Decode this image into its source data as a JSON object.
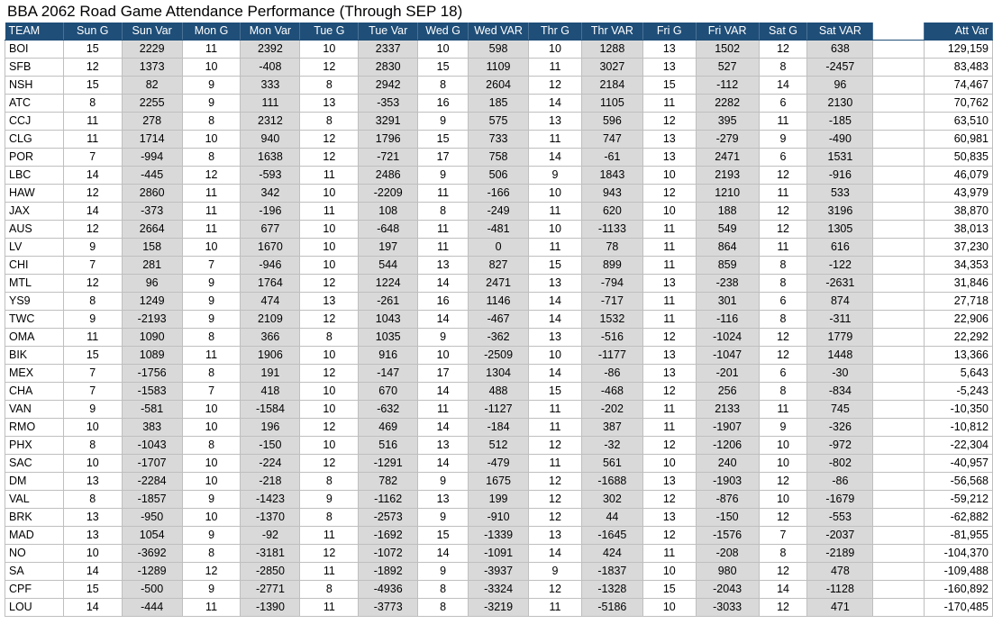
{
  "title": "BBA 2062 Road Game Attendance Performance (Through SEP 18)",
  "columns": [
    "TEAM",
    "Sun G",
    "Sun Var",
    "Mon G",
    "Mon Var",
    "Tue G",
    "Tue Var",
    "Wed G",
    "Wed VAR",
    "Thr G",
    "Thr VAR",
    "Fri G",
    "Fri VAR",
    "Sat G",
    "Sat VAR",
    "",
    "Att Var"
  ],
  "rows": [
    [
      "BOI",
      "15",
      "2229",
      "11",
      "2392",
      "10",
      "2337",
      "10",
      "598",
      "10",
      "1288",
      "13",
      "1502",
      "12",
      "638",
      "129,159"
    ],
    [
      "SFB",
      "12",
      "1373",
      "10",
      "-408",
      "12",
      "2830",
      "15",
      "1109",
      "11",
      "3027",
      "13",
      "527",
      "8",
      "-2457",
      "83,483"
    ],
    [
      "NSH",
      "15",
      "82",
      "9",
      "333",
      "8",
      "2942",
      "8",
      "2604",
      "12",
      "2184",
      "15",
      "-112",
      "14",
      "96",
      "74,467"
    ],
    [
      "ATC",
      "8",
      "2255",
      "9",
      "111",
      "13",
      "-353",
      "16",
      "185",
      "14",
      "1105",
      "11",
      "2282",
      "6",
      "2130",
      "70,762"
    ],
    [
      "CCJ",
      "11",
      "278",
      "8",
      "2312",
      "8",
      "3291",
      "9",
      "575",
      "13",
      "596",
      "12",
      "395",
      "11",
      "-185",
      "63,510"
    ],
    [
      "CLG",
      "11",
      "1714",
      "10",
      "940",
      "12",
      "1796",
      "15",
      "733",
      "11",
      "747",
      "13",
      "-279",
      "9",
      "-490",
      "60,981"
    ],
    [
      "POR",
      "7",
      "-994",
      "8",
      "1638",
      "12",
      "-721",
      "17",
      "758",
      "14",
      "-61",
      "13",
      "2471",
      "6",
      "1531",
      "50,835"
    ],
    [
      "LBC",
      "14",
      "-445",
      "12",
      "-593",
      "11",
      "2486",
      "9",
      "506",
      "9",
      "1843",
      "10",
      "2193",
      "12",
      "-916",
      "46,079"
    ],
    [
      "HAW",
      "12",
      "2860",
      "11",
      "342",
      "10",
      "-2209",
      "11",
      "-166",
      "10",
      "943",
      "12",
      "1210",
      "11",
      "533",
      "43,979"
    ],
    [
      "JAX",
      "14",
      "-373",
      "11",
      "-196",
      "11",
      "108",
      "8",
      "-249",
      "11",
      "620",
      "10",
      "188",
      "12",
      "3196",
      "38,870"
    ],
    [
      "AUS",
      "12",
      "2664",
      "11",
      "677",
      "10",
      "-648",
      "11",
      "-481",
      "10",
      "-1133",
      "11",
      "549",
      "12",
      "1305",
      "38,013"
    ],
    [
      "LV",
      "9",
      "158",
      "10",
      "1670",
      "10",
      "197",
      "11",
      "0",
      "11",
      "78",
      "11",
      "864",
      "11",
      "616",
      "37,230"
    ],
    [
      "CHI",
      "7",
      "281",
      "7",
      "-946",
      "10",
      "544",
      "13",
      "827",
      "15",
      "899",
      "11",
      "859",
      "8",
      "-122",
      "34,353"
    ],
    [
      "MTL",
      "12",
      "96",
      "9",
      "1764",
      "12",
      "1224",
      "14",
      "2471",
      "13",
      "-794",
      "13",
      "-238",
      "8",
      "-2631",
      "31,846"
    ],
    [
      "YS9",
      "8",
      "1249",
      "9",
      "474",
      "13",
      "-261",
      "16",
      "1146",
      "14",
      "-717",
      "11",
      "301",
      "6",
      "874",
      "27,718"
    ],
    [
      "TWC",
      "9",
      "-2193",
      "9",
      "2109",
      "12",
      "1043",
      "14",
      "-467",
      "14",
      "1532",
      "11",
      "-116",
      "8",
      "-311",
      "22,906"
    ],
    [
      "OMA",
      "11",
      "1090",
      "8",
      "366",
      "8",
      "1035",
      "9",
      "-362",
      "13",
      "-516",
      "12",
      "-1024",
      "12",
      "1779",
      "22,292"
    ],
    [
      "BIK",
      "15",
      "1089",
      "11",
      "1906",
      "10",
      "916",
      "10",
      "-2509",
      "10",
      "-1177",
      "13",
      "-1047",
      "12",
      "1448",
      "13,366"
    ],
    [
      "MEX",
      "7",
      "-1756",
      "8",
      "191",
      "12",
      "-147",
      "17",
      "1304",
      "14",
      "-86",
      "13",
      "-201",
      "6",
      "-30",
      "5,643"
    ],
    [
      "CHA",
      "7",
      "-1583",
      "7",
      "418",
      "10",
      "670",
      "14",
      "488",
      "15",
      "-468",
      "12",
      "256",
      "8",
      "-834",
      "-5,243"
    ],
    [
      "VAN",
      "9",
      "-581",
      "10",
      "-1584",
      "10",
      "-632",
      "11",
      "-1127",
      "11",
      "-202",
      "11",
      "2133",
      "11",
      "745",
      "-10,350"
    ],
    [
      "RMO",
      "10",
      "383",
      "10",
      "196",
      "12",
      "469",
      "14",
      "-184",
      "11",
      "387",
      "11",
      "-1907",
      "9",
      "-326",
      "-10,812"
    ],
    [
      "PHX",
      "8",
      "-1043",
      "8",
      "-150",
      "10",
      "516",
      "13",
      "512",
      "12",
      "-32",
      "12",
      "-1206",
      "10",
      "-972",
      "-22,304"
    ],
    [
      "SAC",
      "10",
      "-1707",
      "10",
      "-224",
      "12",
      "-1291",
      "14",
      "-479",
      "11",
      "561",
      "10",
      "240",
      "10",
      "-802",
      "-40,957"
    ],
    [
      "DM",
      "13",
      "-2284",
      "10",
      "-218",
      "8",
      "782",
      "9",
      "1675",
      "12",
      "-1688",
      "13",
      "-1903",
      "12",
      "-86",
      "-56,568"
    ],
    [
      "VAL",
      "8",
      "-1857",
      "9",
      "-1423",
      "9",
      "-1162",
      "13",
      "199",
      "12",
      "302",
      "12",
      "-876",
      "10",
      "-1679",
      "-59,212"
    ],
    [
      "BRK",
      "13",
      "-950",
      "10",
      "-1370",
      "8",
      "-2573",
      "9",
      "-910",
      "12",
      "44",
      "13",
      "-150",
      "12",
      "-553",
      "-62,882"
    ],
    [
      "MAD",
      "13",
      "1054",
      "9",
      "-92",
      "11",
      "-1692",
      "15",
      "-1339",
      "13",
      "-1645",
      "12",
      "-1576",
      "7",
      "-2037",
      "-81,955"
    ],
    [
      "NO",
      "10",
      "-3692",
      "8",
      "-3181",
      "12",
      "-1072",
      "14",
      "-1091",
      "14",
      "424",
      "11",
      "-208",
      "8",
      "-2189",
      "-104,370"
    ],
    [
      "SA",
      "14",
      "-1289",
      "12",
      "-2850",
      "11",
      "-1892",
      "9",
      "-3937",
      "9",
      "-1837",
      "10",
      "980",
      "12",
      "478",
      "-109,488"
    ],
    [
      "CPF",
      "15",
      "-500",
      "9",
      "-2771",
      "8",
      "-4936",
      "8",
      "-3324",
      "12",
      "-1328",
      "15",
      "-2043",
      "14",
      "-1128",
      "-160,892"
    ],
    [
      "LOU",
      "14",
      "-444",
      "11",
      "-1390",
      "11",
      "-3773",
      "8",
      "-3219",
      "11",
      "-5186",
      "10",
      "-3033",
      "12",
      "471",
      "-170,485"
    ]
  ]
}
